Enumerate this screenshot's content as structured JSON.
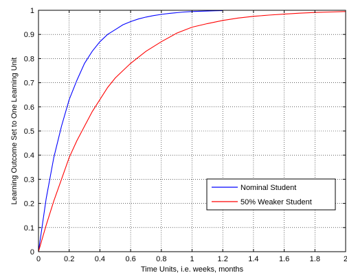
{
  "chart_data": {
    "type": "line",
    "title": "",
    "xlabel": "Time Units, i.e. weeks, months",
    "ylabel": "Learning Outcome Set to One Learning Unit",
    "xlim": [
      0,
      2
    ],
    "ylim": [
      0,
      1
    ],
    "x_ticks": [
      "0",
      "0.2",
      "0.4",
      "0.6",
      "0.8",
      "1",
      "1.2",
      "1.4",
      "1.6",
      "1.8",
      "2"
    ],
    "y_ticks": [
      "0",
      "0.1",
      "0.2",
      "0.3",
      "0.4",
      "0.5",
      "0.6",
      "0.7",
      "0.8",
      "0.9",
      "1"
    ],
    "grid": true,
    "legend_position": "lower-right",
    "series": [
      {
        "name": "Nominal Student",
        "color": "#0000ff",
        "x": [
          0,
          0.05,
          0.1,
          0.15,
          0.2,
          0.25,
          0.3,
          0.35,
          0.4,
          0.45,
          0.5,
          0.55,
          0.6,
          0.65,
          0.7,
          0.75,
          0.8,
          0.85,
          0.9,
          0.95,
          1.0,
          1.05,
          1.1,
          1.15,
          1.2
        ],
        "y": [
          0,
          0.22,
          0.39,
          0.52,
          0.63,
          0.71,
          0.78,
          0.83,
          0.87,
          0.9,
          0.92,
          0.94,
          0.953,
          0.964,
          0.972,
          0.978,
          0.983,
          0.987,
          0.99,
          0.993,
          0.995,
          0.996,
          0.997,
          0.998,
          0.999
        ]
      },
      {
        "name": "50% Weaker Student",
        "color": "#ff0000",
        "x": [
          0,
          0.05,
          0.1,
          0.15,
          0.2,
          0.25,
          0.3,
          0.35,
          0.4,
          0.45,
          0.5,
          0.55,
          0.6,
          0.7,
          0.8,
          0.9,
          1.0,
          1.1,
          1.2,
          1.3,
          1.4,
          1.5,
          1.6,
          1.7,
          1.8,
          1.9,
          2.0
        ],
        "y": [
          0,
          0.11,
          0.21,
          0.3,
          0.39,
          0.46,
          0.52,
          0.58,
          0.63,
          0.68,
          0.72,
          0.75,
          0.78,
          0.83,
          0.87,
          0.905,
          0.93,
          0.945,
          0.958,
          0.968,
          0.975,
          0.98,
          0.984,
          0.988,
          0.991,
          0.993,
          0.995
        ]
      }
    ]
  }
}
